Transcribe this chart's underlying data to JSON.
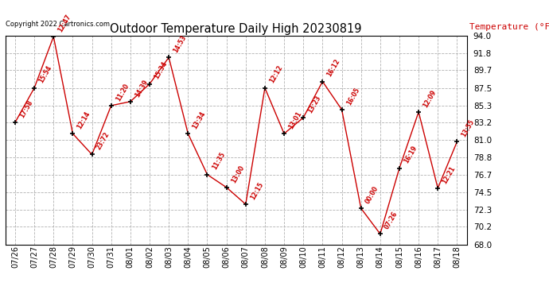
{
  "title": "Outdoor Temperature Daily High 20230819",
  "copyright_text": "Copyright 2022 Cartronics.com",
  "ylabel": "Temperature (°F)",
  "dates": [
    "07/26",
    "07/27",
    "07/28",
    "07/29",
    "07/30",
    "07/31",
    "08/01",
    "08/02",
    "08/03",
    "08/04",
    "08/05",
    "08/06",
    "08/07",
    "08/08",
    "08/09",
    "08/10",
    "08/11",
    "08/12",
    "08/13",
    "08/14",
    "08/15",
    "08/16",
    "08/17",
    "08/18"
  ],
  "temps": [
    83.2,
    87.5,
    93.9,
    81.8,
    79.2,
    85.3,
    85.8,
    88.0,
    91.3,
    81.8,
    76.7,
    75.1,
    73.0,
    87.5,
    81.8,
    83.8,
    88.3,
    84.8,
    72.5,
    69.3,
    77.5,
    84.5,
    75.0,
    80.8
  ],
  "time_labels": [
    "17:58",
    "15:54",
    "12:47",
    "12:14",
    "23:72",
    "11:20",
    "14:39",
    "15:34",
    "14:53",
    "13:34",
    "11:35",
    "13:00",
    "12:15",
    "12:12",
    "13:01",
    "13:23",
    "16:12",
    "16:05",
    "00:00",
    "07:26",
    "16:19",
    "12:09",
    "12:21",
    "13:55"
  ],
  "yticks": [
    68.0,
    70.2,
    72.3,
    74.5,
    76.7,
    78.8,
    81.0,
    83.2,
    85.3,
    87.5,
    89.7,
    91.8,
    94.0
  ],
  "line_color": "#cc0000",
  "marker_color": "#000000",
  "text_color": "#cc0000",
  "title_color": "#000000",
  "bg_color": "#ffffff",
  "grid_color": "#aaaaaa",
  "ylim_min": 68.0,
  "ylim_max": 94.0
}
